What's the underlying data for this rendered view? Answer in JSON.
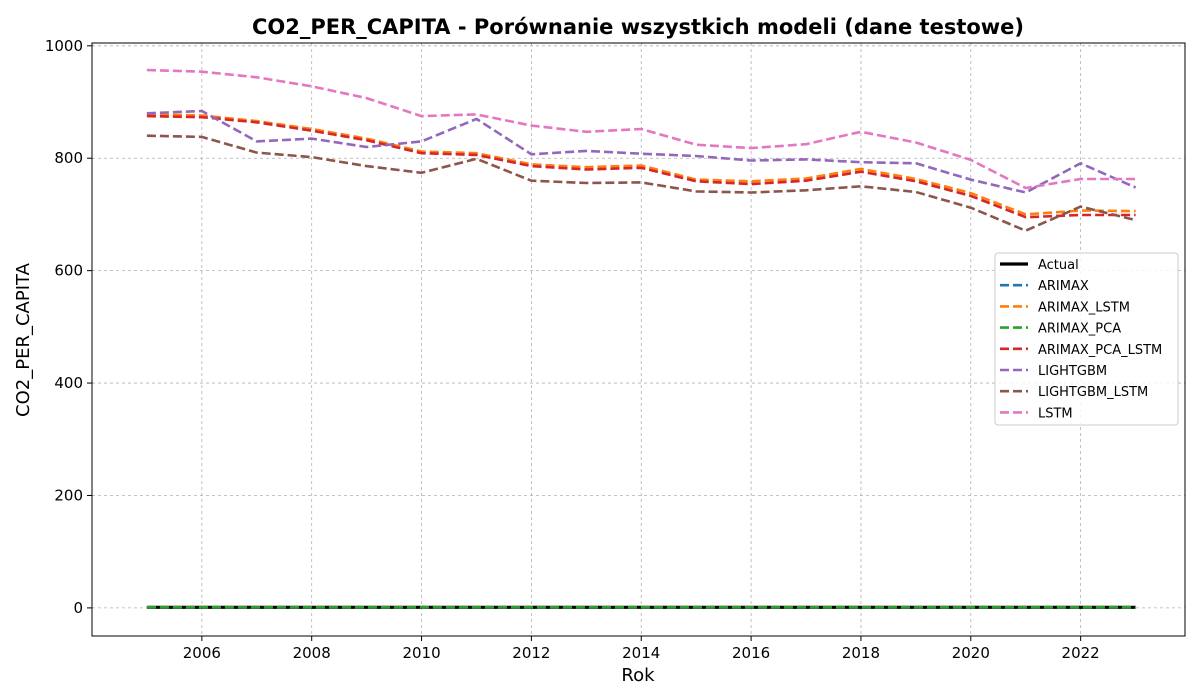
{
  "chart_data": {
    "type": "line",
    "title": "CO2_PER_CAPITA - Porównanie wszystkich modeli (dane testowe)",
    "xlabel": "Rok",
    "ylabel": "CO2_PER_CAPITA",
    "xlim": [
      2004,
      2023.9
    ],
    "ylim": [
      -50,
      1005
    ],
    "xticks": [
      2006,
      2008,
      2010,
      2012,
      2014,
      2016,
      2018,
      2020,
      2022
    ],
    "yticks": [
      0,
      200,
      400,
      600,
      800,
      1000
    ],
    "grid": true,
    "legend_position": "center-right",
    "x": [
      2005,
      2006,
      2007,
      2008,
      2009,
      2010,
      2011,
      2012,
      2013,
      2014,
      2015,
      2016,
      2017,
      2018,
      2019,
      2020,
      2021,
      2022,
      2023
    ],
    "series": [
      {
        "name": "Actual",
        "color": "#000000",
        "style": "solid",
        "values": [
          1,
          1,
          1,
          1,
          1,
          1,
          1,
          1,
          1,
          1,
          1,
          1,
          1,
          1,
          1,
          1,
          1,
          1,
          1
        ]
      },
      {
        "name": "ARIMAX",
        "color": "#1f77b4",
        "style": "dashed",
        "values": [
          1,
          1,
          1,
          1,
          1,
          1,
          1,
          1,
          1,
          1,
          1,
          1,
          1,
          1,
          1,
          1,
          1,
          1,
          1
        ]
      },
      {
        "name": "ARIMAX_LSTM",
        "color": "#ff7f0e",
        "style": "dashed",
        "values": [
          878,
          876,
          866,
          852,
          835,
          812,
          809,
          789,
          784,
          787,
          762,
          759,
          764,
          781,
          763,
          738,
          700,
          707,
          706
        ]
      },
      {
        "name": "ARIMAX_PCA",
        "color": "#2ca02c",
        "style": "dashed",
        "values": [
          1,
          1,
          1,
          1,
          1,
          1,
          1,
          1,
          1,
          1,
          1,
          1,
          1,
          1,
          1,
          1,
          1,
          1,
          1
        ]
      },
      {
        "name": "ARIMAX_PCA_LSTM",
        "color": "#d62728",
        "style": "dashed",
        "values": [
          875,
          873,
          864,
          849,
          832,
          809,
          806,
          786,
          780,
          783,
          759,
          754,
          760,
          776,
          759,
          733,
          695,
          699,
          699
        ]
      },
      {
        "name": "LIGHTGBM",
        "color": "#9467bd",
        "style": "dashed",
        "values": [
          880,
          884,
          830,
          835,
          820,
          830,
          870,
          807,
          813,
          808,
          804,
          796,
          798,
          793,
          791,
          762,
          739,
          791,
          748
        ]
      },
      {
        "name": "LIGHTGBM_LSTM",
        "color": "#8c564b",
        "style": "dashed",
        "values": [
          840,
          838,
          810,
          802,
          786,
          774,
          799,
          760,
          756,
          757,
          741,
          739,
          743,
          750,
          740,
          712,
          671,
          714,
          690
        ]
      },
      {
        "name": "LSTM",
        "color": "#e377c2",
        "style": "dashed",
        "values": [
          957,
          954,
          944,
          928,
          907,
          875,
          878,
          858,
          847,
          852,
          824,
          818,
          825,
          847,
          828,
          797,
          747,
          763,
          763
        ]
      }
    ]
  }
}
